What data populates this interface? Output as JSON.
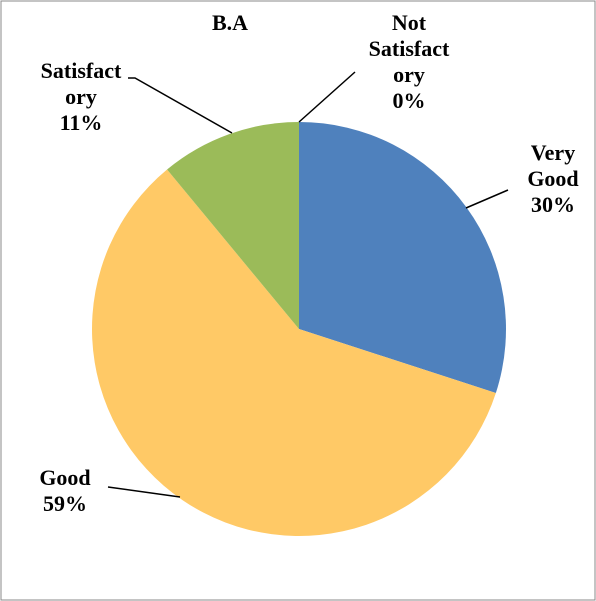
{
  "chart_data": {
    "type": "pie",
    "title": "B.A",
    "categories": [
      "Very Good",
      "Good",
      "Satisfactory",
      "Not Satisfactory"
    ],
    "values": [
      30,
      59,
      11,
      0
    ],
    "value_labels": [
      "30%",
      "59%",
      "11%",
      "0%"
    ],
    "colors": [
      "#4f81bd",
      "#ffc966",
      "#9bbb59",
      "#c0504d"
    ]
  }
}
